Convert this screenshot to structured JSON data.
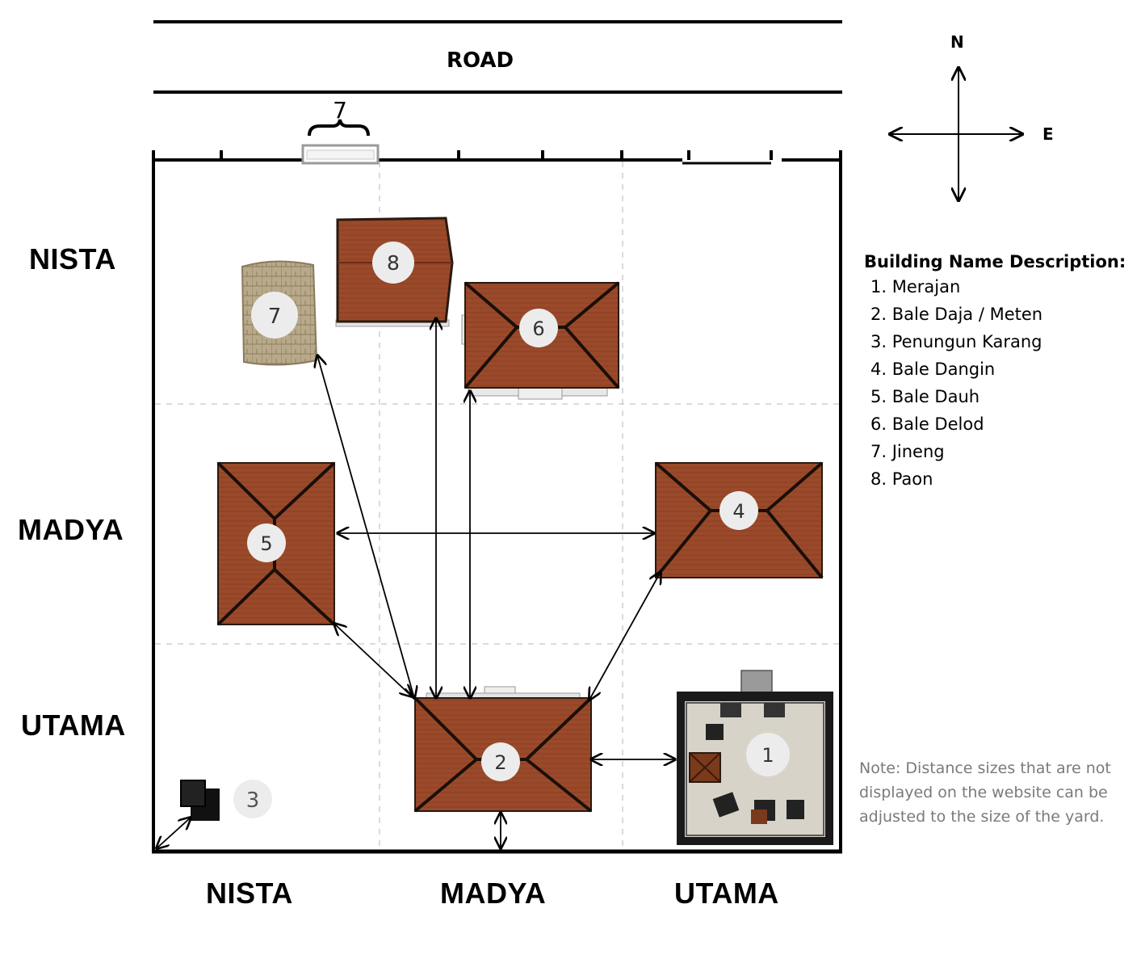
{
  "road_label": "ROAD",
  "compass": {
    "north": "N",
    "east": "E"
  },
  "gate_label": "7",
  "row_labels": {
    "top": "NISTA",
    "middle": "MADYA",
    "bottom": "UTAMA"
  },
  "col_labels": {
    "left": "NISTA",
    "middle": "MADYA",
    "right": "UTAMA"
  },
  "buildings": {
    "b1": "1",
    "b2": "2",
    "b3": "3",
    "b4": "4",
    "b5": "5",
    "b6": "6",
    "b7": "7",
    "b8": "8"
  },
  "legend": {
    "title": "Building Name Description:",
    "items": [
      "1. Merajan",
      "2. Bale Daja / Meten",
      "3. Penungun Karang",
      "4. Bale Dangin",
      "5. Bale Dauh",
      "6. Bale Delod",
      "7. Jineng",
      "8. Paon"
    ]
  },
  "note": "Note: Distance sizes that are not displayed on the website can be adjusted to the size of the yard.",
  "colors": {
    "roof": "#9a4a2a",
    "roof_dark": "#7c3a20",
    "badge": "#ececec",
    "stone": "#b8a98a",
    "temple_floor": "#d8d3c8"
  }
}
